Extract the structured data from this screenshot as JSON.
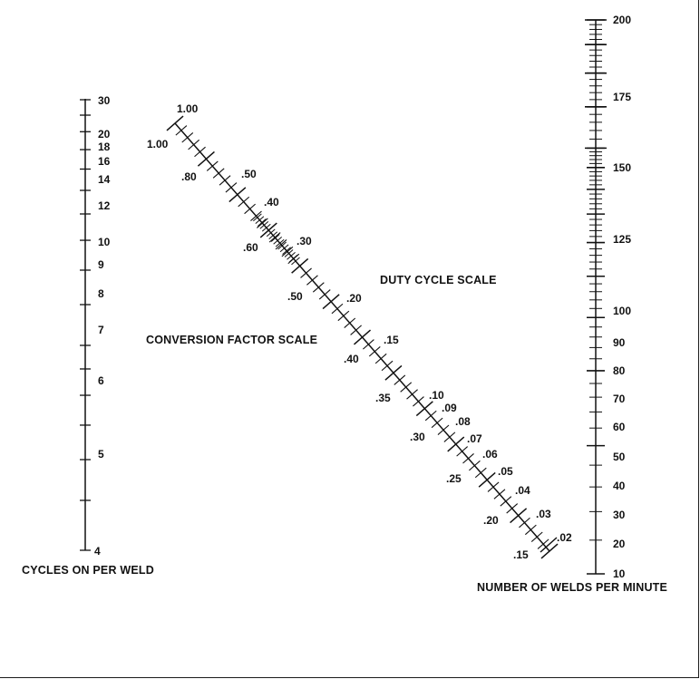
{
  "colors": {
    "ink": "#111111",
    "background": "#ffffff"
  },
  "titles": {
    "cycles_scale": "CYCLES ON PER WELD",
    "welds_scale": "NUMBER OF WELDS PER MINUTE",
    "duty_scale": "DUTY CYCLE SCALE",
    "conversion_scale": "CONVERSION FACTOR SCALE"
  },
  "cycles_scale": {
    "range": [
      4,
      30
    ],
    "labels": [
      "30",
      "20",
      "18",
      "16",
      "14",
      "12",
      "10",
      "9",
      "8",
      "7",
      "6",
      "5",
      "4"
    ],
    "minor_ticks": [
      30,
      28,
      26,
      24,
      22,
      20,
      18,
      16,
      14,
      12,
      10,
      9,
      8,
      7,
      6,
      5,
      4
    ]
  },
  "welds_scale": {
    "range": [
      10,
      200
    ],
    "labels": [
      "200",
      "175",
      "150",
      "125",
      "100",
      "90",
      "80",
      "70",
      "60",
      "50",
      "40",
      "30",
      "20",
      "10"
    ]
  },
  "duty_cycle_scale": {
    "labels": [
      ".50",
      ".40",
      ".30",
      ".20",
      ".15",
      ".10",
      ".09",
      ".08",
      ".07",
      ".06",
      ".05",
      ".04",
      ".03",
      ".02"
    ],
    "top_label": "1.00"
  },
  "conversion_factor_scale": {
    "labels": [
      "1.00",
      ".80",
      ".60",
      ".50",
      ".40",
      ".35",
      ".30",
      ".25",
      ".20",
      ".15"
    ]
  }
}
